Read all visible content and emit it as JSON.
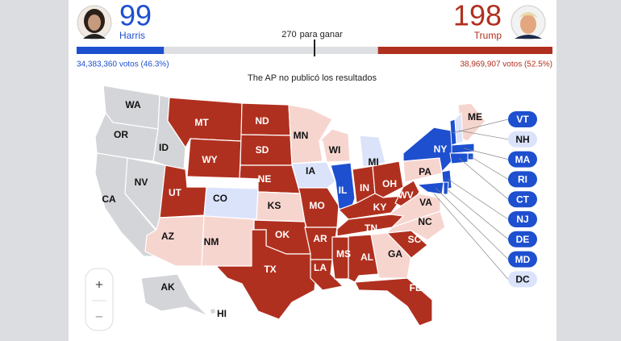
{
  "header": {
    "left": {
      "electoral_votes": 99,
      "name": "Harris",
      "popular": "34,383,360 votos (46.3%)",
      "color": "#1d4fcf"
    },
    "right": {
      "electoral_votes": 198,
      "name": "Trump",
      "popular": "38,969,907 votos (52.5%)",
      "color": "#b0301f"
    },
    "threshold": 270,
    "threshold_label": "para ganar",
    "note": "The AP no publicó los resultados"
  },
  "map": {
    "states": [
      {
        "label": "WA",
        "color": "#d4d5d8",
        "text_color": "#111"
      },
      {
        "label": "OR",
        "color": "#d4d5d8",
        "text_color": "#111"
      },
      {
        "label": "CA",
        "color": "#d4d5d8",
        "text_color": "#111"
      },
      {
        "label": "NV",
        "color": "#d4d5d8",
        "text_color": "#111"
      },
      {
        "label": "ID",
        "color": "#d4d5d8",
        "text_color": "#111"
      },
      {
        "label": "MT",
        "color": "#b0301f",
        "text_color": "#fff"
      },
      {
        "label": "WY",
        "color": "#b0301f",
        "text_color": "#fff"
      },
      {
        "label": "UT",
        "color": "#b0301f",
        "text_color": "#fff"
      },
      {
        "label": "CO",
        "color": "#dbe3fb",
        "text_color": "#111"
      },
      {
        "label": "AZ",
        "color": "#f7d5cf",
        "text_color": "#111"
      },
      {
        "label": "NM",
        "color": "#f7d5cf",
        "text_color": "#111"
      },
      {
        "label": "ND",
        "color": "#b0301f",
        "text_color": "#fff"
      },
      {
        "label": "SD",
        "color": "#b0301f",
        "text_color": "#fff"
      },
      {
        "label": "NE",
        "color": "#b0301f",
        "text_color": "#fff"
      },
      {
        "label": "KS",
        "color": "#f7d5cf",
        "text_color": "#111"
      },
      {
        "label": "OK",
        "color": "#b0301f",
        "text_color": "#fff"
      },
      {
        "label": "TX",
        "color": "#b0301f",
        "text_color": "#fff"
      },
      {
        "label": "MN",
        "color": "#f7d5cf",
        "text_color": "#111"
      },
      {
        "label": "IA",
        "color": "#dbe3fb",
        "text_color": "#111"
      },
      {
        "label": "MO",
        "color": "#b0301f",
        "text_color": "#fff"
      },
      {
        "label": "AR",
        "color": "#b0301f",
        "text_color": "#fff"
      },
      {
        "label": "LA",
        "color": "#b0301f",
        "text_color": "#fff"
      },
      {
        "label": "WI",
        "color": "#f7d5cf",
        "text_color": "#111"
      },
      {
        "label": "IL",
        "color": "#1d4fcf",
        "text_color": "#fff"
      },
      {
        "label": "MI",
        "color": "#dbe3fb",
        "text_color": "#111"
      },
      {
        "label": "IN",
        "color": "#b0301f",
        "text_color": "#fff"
      },
      {
        "label": "OH",
        "color": "#b0301f",
        "text_color": "#fff"
      },
      {
        "label": "KY",
        "color": "#b0301f",
        "text_color": "#fff"
      },
      {
        "label": "WV",
        "color": "#b0301f",
        "text_color": "#fff"
      },
      {
        "label": "VA",
        "color": "#f7d5cf",
        "text_color": "#111"
      },
      {
        "label": "TN",
        "color": "#b0301f",
        "text_color": "#fff"
      },
      {
        "label": "NC",
        "color": "#f7d5cf",
        "text_color": "#111"
      },
      {
        "label": "MS",
        "color": "#b0301f",
        "text_color": "#fff"
      },
      {
        "label": "AL",
        "color": "#b0301f",
        "text_color": "#fff"
      },
      {
        "label": "GA",
        "color": "#f7d5cf",
        "text_color": "#111"
      },
      {
        "label": "SC",
        "color": "#b0301f",
        "text_color": "#fff"
      },
      {
        "label": "FL",
        "color": "#b0301f",
        "text_color": "#fff"
      },
      {
        "label": "PA",
        "color": "#f7d5cf",
        "text_color": "#111"
      },
      {
        "label": "NY",
        "color": "#1d4fcf",
        "text_color": "#fff"
      },
      {
        "label": "ME",
        "color": "#f7d5cf",
        "text_color": "#111"
      },
      {
        "label": "AK",
        "color": "#d4d5d8",
        "text_color": "#111"
      },
      {
        "label": "HI",
        "color": "#d4d5d8",
        "text_color": "#111"
      }
    ],
    "callouts": [
      {
        "label": "VT",
        "color": "#1d4fcf",
        "text_color": "#fff"
      },
      {
        "label": "NH",
        "color": "#dbe3fb",
        "text_color": "#111"
      },
      {
        "label": "MA",
        "color": "#1d4fcf",
        "text_color": "#fff"
      },
      {
        "label": "RI",
        "color": "#1d4fcf",
        "text_color": "#fff"
      },
      {
        "label": "CT",
        "color": "#1d4fcf",
        "text_color": "#fff"
      },
      {
        "label": "NJ",
        "color": "#1d4fcf",
        "text_color": "#fff"
      },
      {
        "label": "DE",
        "color": "#1d4fcf",
        "text_color": "#fff"
      },
      {
        "label": "MD",
        "color": "#1d4fcf",
        "text_color": "#fff"
      },
      {
        "label": "DC",
        "color": "#dbe3fb",
        "text_color": "#111"
      }
    ]
  },
  "zoom": {
    "in": "+",
    "out": "−"
  }
}
